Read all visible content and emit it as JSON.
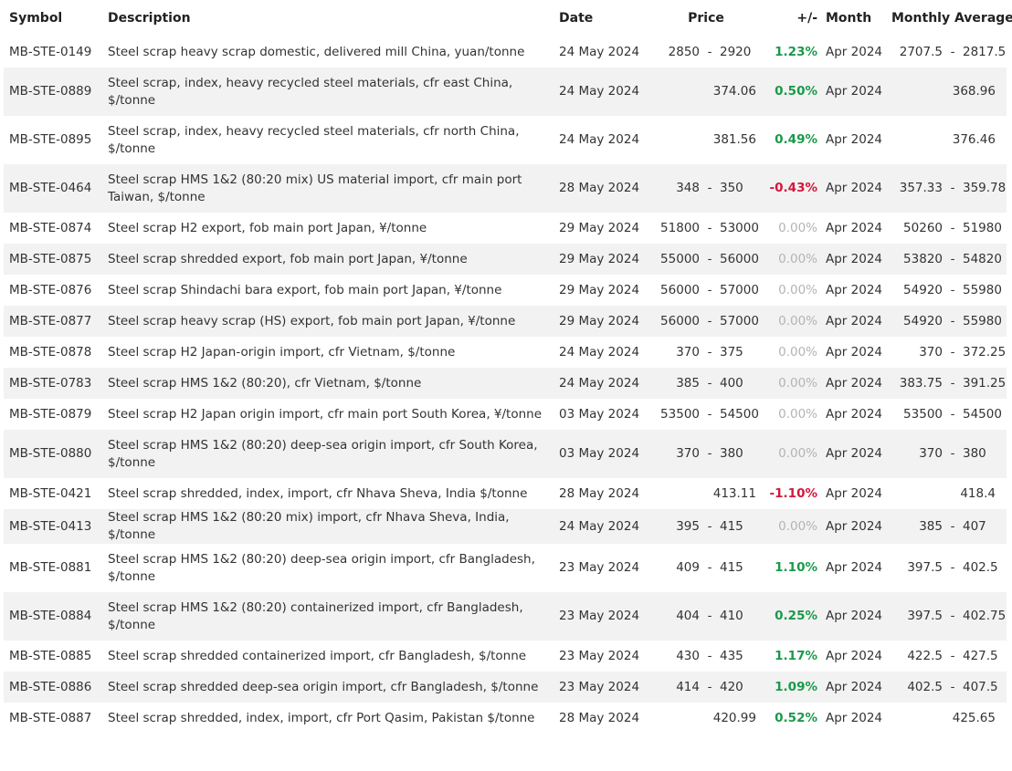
{
  "table": {
    "header": [
      "Symbol",
      "Description",
      "Date",
      "Price",
      "+/-",
      "Month",
      "Monthly Average"
    ],
    "rows": [
      {
        "symbol": "MB-STE-0149",
        "description": "Steel scrap heavy scrap domestic, delivered mill China, yuan/tonne",
        "date": "24 May 2024",
        "price": [
          "2850",
          "-",
          "2920"
        ],
        "change": "1.23%",
        "month": "Apr 2024",
        "average": [
          "2707.5",
          "-",
          "2817.5"
        ]
      },
      {
        "symbol": "MB-STE-0889",
        "description": "Steel scrap, index, heavy recycled steel materials, cfr east China, $/tonne",
        "date": "24 May 2024",
        "price": [
          "374.06"
        ],
        "change": "0.50%",
        "month": "Apr 2024",
        "average": [
          "368.96"
        ]
      },
      {
        "symbol": "MB-STE-0895",
        "description": "Steel scrap, index, heavy recycled steel materials, cfr north China, $/tonne",
        "date": "24 May 2024",
        "price": [
          "381.56"
        ],
        "change": "0.49%",
        "month": "Apr 2024",
        "average": [
          "376.46"
        ]
      },
      {
        "symbol": "MB-STE-0464",
        "description": "Steel scrap HMS 1&2 (80:20 mix) US material import, cfr main port Taiwan, $/tonne",
        "date": "28 May 2024",
        "price": [
          "348",
          "-",
          "350"
        ],
        "change": "-0.43%",
        "month": "Apr 2024",
        "average": [
          "357.33",
          "-",
          "359.78"
        ]
      },
      {
        "symbol": "MB-STE-0874",
        "description": "Steel scrap H2 export, fob main port Japan, ¥/tonne",
        "date": "29 May 2024",
        "price": [
          "51800",
          "-",
          "53000"
        ],
        "change": "0.00%",
        "month": "Apr 2024",
        "average": [
          "50260",
          "-",
          "51980"
        ]
      },
      {
        "symbol": "MB-STE-0875",
        "description": "Steel scrap shredded export, fob main port Japan, ¥/tonne",
        "date": "29 May 2024",
        "price": [
          "55000",
          "-",
          "56000"
        ],
        "change": "0.00%",
        "month": "Apr 2024",
        "average": [
          "53820",
          "-",
          "54820"
        ]
      },
      {
        "symbol": "MB-STE-0876",
        "description": "Steel scrap Shindachi bara export, fob main port Japan, ¥/tonne",
        "date": "29 May 2024",
        "price": [
          "56000",
          "-",
          "57000"
        ],
        "change": "0.00%",
        "month": "Apr 2024",
        "average": [
          "54920",
          "-",
          "55980"
        ]
      },
      {
        "symbol": "MB-STE-0877",
        "description": "Steel scrap heavy scrap (HS) export, fob main port Japan, ¥/tonne",
        "date": "29 May 2024",
        "price": [
          "56000",
          "-",
          "57000"
        ],
        "change": "0.00%",
        "month": "Apr 2024",
        "average": [
          "54920",
          "-",
          "55980"
        ]
      },
      {
        "symbol": "MB-STE-0878",
        "description": "Steel scrap H2 Japan-origin import, cfr Vietnam, $/tonne",
        "date": "24 May 2024",
        "price": [
          "370",
          "-",
          "375"
        ],
        "change": "0.00%",
        "month": "Apr 2024",
        "average": [
          "370",
          "-",
          "372.25"
        ]
      },
      {
        "symbol": "MB-STE-0783",
        "description": "Steel scrap HMS 1&2 (80:20), cfr Vietnam, $/tonne",
        "date": "24 May 2024",
        "price": [
          "385",
          "-",
          "400"
        ],
        "change": "0.00%",
        "month": "Apr 2024",
        "average": [
          "383.75",
          "-",
          "391.25"
        ]
      },
      {
        "symbol": "MB-STE-0879",
        "description": "Steel scrap H2 Japan origin import, cfr main port South Korea, ¥/tonne",
        "date": "03 May 2024",
        "price": [
          "53500",
          "-",
          "54500"
        ],
        "change": "0.00%",
        "month": "Apr 2024",
        "average": [
          "53500",
          "-",
          "54500"
        ]
      },
      {
        "symbol": "MB-STE-0880",
        "description": "Steel scrap HMS 1&2 (80:20) deep-sea origin import, cfr South Korea, $/tonne",
        "date": "03 May 2024",
        "price": [
          "370",
          "-",
          "380"
        ],
        "change": "0.00%",
        "month": "Apr 2024",
        "average": [
          "370",
          "-",
          "380"
        ]
      },
      {
        "symbol": "MB-STE-0421",
        "description": "Steel scrap shredded, index, import, cfr Nhava Sheva, India $/tonne",
        "date": "28 May 2024",
        "price": [
          "413.11"
        ],
        "change": "-1.10%",
        "month": "Apr 2024",
        "average": [
          "418.4"
        ]
      },
      {
        "symbol": "MB-STE-0413",
        "description": "Steel scrap HMS 1&2 (80:20 mix) import, cfr Nhava Sheva, India, $/tonne",
        "date": "24 May 2024",
        "price": [
          "395",
          "-",
          "415"
        ],
        "change": "0.00%",
        "month": "Apr 2024",
        "average": [
          "385",
          "-",
          "407"
        ]
      },
      {
        "symbol": "MB-STE-0881",
        "description": "Steel scrap HMS 1&2 (80:20) deep-sea origin import, cfr Bangladesh, $/tonne",
        "date": "23 May 2024",
        "price": [
          "409",
          "-",
          "415"
        ],
        "change": "1.10%",
        "month": "Apr 2024",
        "average": [
          "397.5",
          "-",
          "402.5"
        ]
      },
      {
        "symbol": "MB-STE-0884",
        "description": "Steel scrap HMS 1&2 (80:20) containerized import, cfr Bangladesh, $/tonne",
        "date": "23 May 2024",
        "price": [
          "404",
          "-",
          "410"
        ],
        "change": "0.25%",
        "month": "Apr 2024",
        "average": [
          "397.5",
          "-",
          "402.75"
        ]
      },
      {
        "symbol": "MB-STE-0885",
        "description": "Steel scrap shredded containerized import, cfr Bangladesh, $/tonne",
        "date": "23 May 2024",
        "price": [
          "430",
          "-",
          "435"
        ],
        "change": "1.17%",
        "month": "Apr 2024",
        "average": [
          "422.5",
          "-",
          "427.5"
        ]
      },
      {
        "symbol": "MB-STE-0886",
        "description": "Steel scrap shredded deep-sea origin import, cfr Bangladesh, $/tonne",
        "date": "23 May 2024",
        "price": [
          "414",
          "-",
          "420"
        ],
        "change": "1.09%",
        "month": "Apr 2024",
        "average": [
          "402.5",
          "-",
          "407.5"
        ]
      },
      {
        "symbol": "MB-STE-0887",
        "description": "Steel scrap shredded, index, import, cfr Port Qasim, Pakistan $/tonne",
        "date": "28 May 2024",
        "price": [
          "420.99"
        ],
        "change": "0.52%",
        "month": "Apr 2024",
        "average": [
          "425.65"
        ]
      }
    ]
  }
}
